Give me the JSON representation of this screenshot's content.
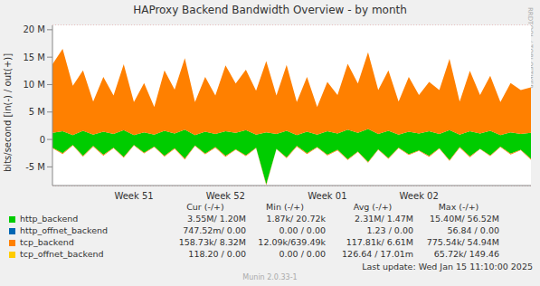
{
  "chart_data": {
    "type": "area",
    "title": "HAProxy Backend Bandwidth Overview - by month",
    "y_label": "bits/second [in(-) / out(+)]",
    "watermark": "RRDTOOL / TOBI OETIKER",
    "footer": "Munin 2.0.33-1",
    "last_update": "Last update: Wed Jan 15 11:10:00 2025",
    "stat_headers": [
      "Cur (-/+)",
      "Min (-/+)",
      "Avg (-/+)",
      "Max (-/+)"
    ],
    "grid": true,
    "stacked": true,
    "ylim": [
      -8.4,
      20.8
    ],
    "yticks": [
      {
        "value": -5,
        "label": "-5 M"
      },
      0,
      {
        "value": 5,
        "label": "5 M"
      },
      {
        "value": 10,
        "label": "10 M"
      },
      {
        "value": 15,
        "label": "15 M"
      },
      {
        "value": 20,
        "label": "20 M"
      }
    ],
    "categories": [
      null,
      null,
      null,
      null,
      null,
      null,
      null,
      null,
      "Week 51",
      null,
      null,
      null,
      null,
      null,
      null,
      null,
      null,
      "Week 52",
      null,
      null,
      null,
      null,
      null,
      null,
      null,
      null,
      null,
      "Week 01",
      null,
      null,
      null,
      null,
      null,
      null,
      null,
      null,
      "Week 02",
      null,
      null,
      null,
      null,
      null,
      null,
      null,
      null,
      null,
      null,
      null
    ],
    "series": [
      {
        "name": "http_backend",
        "color": "#00cc00",
        "values": [
          1.2,
          1.5,
          0.8,
          1.6,
          0.9,
          1.4,
          1.0,
          1.7,
          0.8,
          1.3,
          0.9,
          1.6,
          1.1,
          1.8,
          0.8,
          1.4,
          1.0,
          1.5,
          1.2,
          1.7,
          0.9,
          1.3,
          1.0,
          1.6,
          0.8,
          1.4,
          0.9,
          1.5,
          1.1,
          1.8,
          1.2,
          1.9,
          1.0,
          1.6,
          0.9,
          1.4,
          1.1,
          1.5,
          1.0,
          1.7,
          0.9,
          1.5,
          1.1,
          1.6,
          0.8,
          1.3,
          1.0,
          1.2
        ],
        "in_values": [
          -1.5,
          -2.5,
          -1,
          -3,
          -1.2,
          -2.8,
          -1.5,
          -3.2,
          -1,
          -2.4,
          -1.3,
          -3,
          -1.6,
          -3.5,
          -1.1,
          -2.6,
          -1.4,
          -3,
          -1.8,
          -2.9,
          -1.5,
          -8.2,
          -1.7,
          -3.3,
          -1.2,
          -2.5,
          -1.4,
          -2.8,
          -1.9,
          -3.6,
          -2.2,
          -4.1,
          -1.8,
          -3.4,
          -1.5,
          -2.7,
          -2,
          -3,
          -1.6,
          -3.8,
          -1.4,
          -3.1,
          -1.7,
          -2.9,
          -1.3,
          -2.6,
          -1.9,
          -3.55
        ],
        "stats": [
          "3.55M/ 1.20M",
          "1.87k/ 20.72k",
          "2.31M/ 1.47M",
          "15.40M/ 56.52M"
        ]
      },
      {
        "name": "http_offnet_backend",
        "color": "#0066b3",
        "values": [
          0,
          0,
          0,
          0,
          0,
          0,
          0,
          0,
          0,
          0,
          0,
          0,
          0,
          0,
          0,
          0,
          0,
          0,
          0,
          0,
          0,
          0,
          0,
          0,
          0,
          0,
          0,
          0,
          0,
          0,
          0,
          0,
          0,
          0,
          0,
          0,
          0,
          0,
          0,
          0,
          0,
          0,
          0,
          0,
          0,
          0,
          0,
          0
        ],
        "in_values": [
          0,
          0,
          0,
          0,
          0,
          0,
          0,
          0,
          0,
          0,
          0,
          0,
          0,
          0,
          0,
          0,
          0,
          0,
          0,
          0,
          0,
          0,
          0,
          0,
          0,
          0,
          0,
          0,
          0,
          0,
          0,
          0,
          0,
          0,
          0,
          0,
          0,
          0,
          0,
          0,
          0,
          0,
          0,
          0,
          0,
          0,
          0,
          0
        ],
        "stats": [
          "747.52m/ 0.00",
          "0.00 / 0.00",
          "1.23 / 0.00",
          "56.84 / 0.00"
        ]
      },
      {
        "name": "tcp_backend",
        "color": "#ff8000",
        "values": [
          12.5,
          15,
          9,
          11,
          6,
          10,
          7,
          12,
          6,
          9,
          5,
          11,
          8,
          13,
          6,
          10,
          7,
          12,
          9,
          11,
          8,
          13,
          7,
          12,
          6,
          10,
          5,
          9,
          7,
          12,
          9,
          14,
          8,
          11,
          6,
          10,
          7,
          9,
          8,
          13,
          6,
          11,
          7,
          10,
          6,
          9,
          8,
          8.3
        ],
        "in_values": [
          -0.1,
          -0.15,
          -0.08,
          -0.12,
          -0.1,
          -0.15,
          -0.08,
          -0.12,
          -0.1,
          -0.15,
          -0.08,
          -0.12,
          -0.1,
          -0.15,
          -0.08,
          -0.12,
          -0.1,
          -0.15,
          -0.08,
          -0.12,
          -0.1,
          -0.15,
          -0.08,
          -0.12,
          -0.1,
          -0.15,
          -0.08,
          -0.12,
          -0.1,
          -0.15,
          -0.08,
          -0.12,
          -0.1,
          -0.15,
          -0.08,
          -0.12,
          -0.1,
          -0.15,
          -0.08,
          -0.12,
          -0.1,
          -0.15,
          -0.08,
          -0.12,
          -0.1,
          -0.15,
          -0.08,
          -0.16
        ],
        "stats": [
          "158.73k/ 8.32M",
          "12.09k/639.49k",
          "117.81k/ 6.61M",
          "775.54k/ 54.94M"
        ]
      },
      {
        "name": "tcp_offnet_backend",
        "color": "#ffcc00",
        "values": [
          0,
          0,
          0,
          0,
          0,
          0,
          0,
          0,
          0,
          0,
          0,
          0,
          0,
          0,
          0,
          0,
          0,
          0,
          0,
          0,
          0,
          0,
          0,
          0,
          0,
          0,
          0,
          0,
          0,
          0,
          0,
          0,
          0,
          0,
          0,
          0,
          0,
          0,
          0,
          0,
          0,
          0,
          0,
          0,
          0,
          0,
          0,
          0
        ],
        "in_values": [
          0,
          0,
          0,
          0,
          0,
          0,
          0,
          0,
          0,
          0,
          0,
          0,
          0,
          0,
          0,
          0,
          0,
          0,
          0,
          0,
          0,
          0,
          0,
          0,
          0,
          0,
          0,
          0,
          0,
          0,
          0,
          0,
          0,
          0,
          0,
          0,
          0,
          0,
          0,
          0,
          0,
          0,
          0,
          0,
          0,
          0,
          0,
          0
        ],
        "stats": [
          "118.20 / 0.00",
          "0.00 / 0.00",
          "126.64 / 17.01m",
          "65.72k/ 149.46"
        ]
      }
    ]
  }
}
